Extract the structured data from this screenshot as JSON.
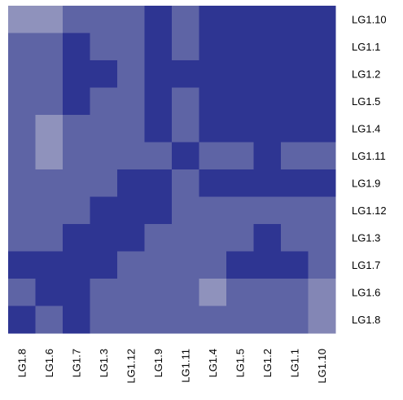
{
  "chart_data": {
    "type": "heatmap",
    "title": "",
    "xlabel": "",
    "ylabel": "",
    "row_labels": [
      "LG1.10",
      "LG1.1",
      "LG1.2",
      "LG1.5",
      "LG1.4",
      "LG1.11",
      "LG1.9",
      "LG1.12",
      "LG1.3",
      "LG1.7",
      "LG1.6",
      "LG1.8"
    ],
    "col_labels": [
      "LG1.8",
      "LG1.6",
      "LG1.7",
      "LG1.3",
      "LG1.12",
      "LG1.9",
      "LG1.11",
      "LG1.4",
      "LG1.5",
      "LG1.2",
      "LG1.1",
      "LG1.10"
    ],
    "values": [
      [
        3,
        3,
        2,
        2,
        2,
        1,
        2,
        1,
        1,
        1,
        1,
        1
      ],
      [
        2,
        2,
        1,
        2,
        2,
        1,
        2,
        1,
        1,
        1,
        1,
        1
      ],
      [
        2,
        2,
        1,
        1,
        2,
        1,
        1,
        1,
        1,
        1,
        1,
        1
      ],
      [
        2,
        2,
        1,
        2,
        2,
        1,
        2,
        1,
        1,
        1,
        1,
        1
      ],
      [
        2,
        3,
        2,
        2,
        2,
        1,
        2,
        1,
        1,
        1,
        1,
        1
      ],
      [
        2,
        3,
        2,
        2,
        2,
        2,
        1,
        2,
        2,
        1,
        2,
        2
      ],
      [
        2,
        2,
        2,
        2,
        1,
        1,
        2,
        1,
        1,
        1,
        1,
        1
      ],
      [
        2,
        2,
        2,
        1,
        1,
        1,
        2,
        2,
        2,
        2,
        2,
        2
      ],
      [
        2,
        2,
        1,
        1,
        1,
        2,
        2,
        2,
        2,
        1,
        2,
        2
      ],
      [
        1,
        1,
        1,
        1,
        2,
        2,
        2,
        2,
        1,
        1,
        1,
        2
      ],
      [
        2,
        1,
        1,
        2,
        2,
        2,
        2,
        3,
        2,
        2,
        2,
        4
      ],
      [
        1,
        2,
        1,
        2,
        2,
        2,
        2,
        2,
        2,
        2,
        2,
        4
      ]
    ],
    "colors": {
      "1": "#2E3592",
      "2": "#5E64A5",
      "3": "#8F92BC",
      "4": "#8386B5"
    },
    "legend": "none",
    "grid": false
  }
}
